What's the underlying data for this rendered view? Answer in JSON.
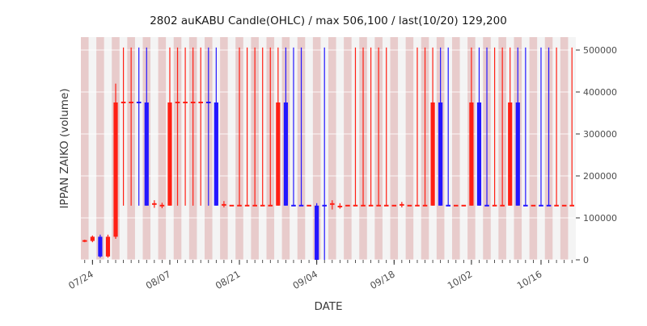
{
  "chart_data": {
    "type": "candlestick-ohlc",
    "title": "2802 auKABU Candle(OHLC) / max 506,100 / last(10/20) 129,200",
    "xlabel": "DATE",
    "ylabel": "IPPAN ZAIKO (volume)",
    "max_value": 506100,
    "last": {
      "date": "10/20",
      "value": 129200
    },
    "ylim": [
      0,
      530000
    ],
    "yticks": [
      0,
      100000,
      200000,
      300000,
      400000,
      500000
    ],
    "xticks": [
      "07/24",
      "08/07",
      "08/21",
      "09/04",
      "09/18",
      "10/02",
      "10/16"
    ],
    "legend": "none",
    "grid": "white-horizontal",
    "colors": {
      "red": "#ff1f14",
      "blue": "#2416ff",
      "plot_bg": "#e8e8e8",
      "stripe_pink": "rgba(235,130,130,0.28)",
      "stripe_light": "rgba(255,255,255,0.50)",
      "tick_label": "#4d4d4d",
      "title_text": "#1a1a1a"
    },
    "candle_fields": [
      "date",
      "open",
      "high",
      "low",
      "close",
      "color"
    ],
    "candles": [
      [
        "07/21",
        45000,
        48000,
        42000,
        45000,
        "red"
      ],
      [
        "07/24",
        45000,
        58000,
        42000,
        55000,
        "red"
      ],
      [
        "07/25",
        55000,
        60000,
        5000,
        8000,
        "blue"
      ],
      [
        "07/26",
        8000,
        60000,
        5000,
        55000,
        "red"
      ],
      [
        "07/27",
        55000,
        420000,
        50000,
        375000,
        "red"
      ],
      [
        "07/28",
        375000,
        506100,
        129200,
        375000,
        "red"
      ],
      [
        "07/31",
        375000,
        506100,
        129200,
        375000,
        "red"
      ],
      [
        "08/01",
        375000,
        506100,
        129200,
        375000,
        "blue"
      ],
      [
        "08/02",
        375000,
        506100,
        129200,
        129200,
        "blue"
      ],
      [
        "08/03",
        129200,
        142000,
        124000,
        133000,
        "red"
      ],
      [
        "08/04",
        129200,
        136000,
        123000,
        129200,
        "red"
      ],
      [
        "08/07",
        129200,
        506100,
        129200,
        375000,
        "red"
      ],
      [
        "08/08",
        375000,
        506100,
        129200,
        375000,
        "red"
      ],
      [
        "08/09",
        375000,
        506100,
        129200,
        375000,
        "red"
      ],
      [
        "08/10",
        375000,
        506100,
        129200,
        375000,
        "red"
      ],
      [
        "08/14",
        375000,
        506100,
        129200,
        375000,
        "red"
      ],
      [
        "08/15",
        375000,
        506100,
        129200,
        375000,
        "blue"
      ],
      [
        "08/16",
        375000,
        506100,
        129200,
        129200,
        "blue"
      ],
      [
        "08/17",
        129200,
        140000,
        125000,
        131000,
        "red"
      ],
      [
        "08/18",
        129200,
        129200,
        129200,
        129200,
        "red"
      ],
      [
        "08/21",
        129200,
        506100,
        129200,
        129200,
        "red"
      ],
      [
        "08/22",
        129200,
        506100,
        129200,
        129200,
        "red"
      ],
      [
        "08/23",
        129200,
        506100,
        129200,
        129200,
        "red"
      ],
      [
        "08/24",
        129200,
        506100,
        129200,
        129200,
        "red"
      ],
      [
        "08/25",
        129200,
        506100,
        129200,
        129200,
        "red"
      ],
      [
        "08/28",
        129200,
        506100,
        129200,
        375000,
        "red"
      ],
      [
        "08/29",
        375000,
        506100,
        129200,
        129200,
        "blue"
      ],
      [
        "08/30",
        129200,
        506100,
        129200,
        129200,
        "blue"
      ],
      [
        "08/31",
        129200,
        506100,
        129200,
        129200,
        "blue"
      ],
      [
        "09/01",
        129200,
        129200,
        129200,
        129200,
        "red"
      ],
      [
        "09/04",
        129200,
        135000,
        0,
        0,
        "blue"
      ],
      [
        "09/05",
        129200,
        506100,
        0,
        129200,
        "blue"
      ],
      [
        "09/06",
        129200,
        142000,
        120000,
        133000,
        "red"
      ],
      [
        "09/07",
        129200,
        135000,
        122000,
        127000,
        "red"
      ],
      [
        "09/08",
        129200,
        129200,
        129200,
        129200,
        "red"
      ],
      [
        "09/11",
        129200,
        506100,
        129200,
        129200,
        "red"
      ],
      [
        "09/12",
        129200,
        506100,
        129200,
        129200,
        "red"
      ],
      [
        "09/13",
        129200,
        506100,
        129200,
        129200,
        "red"
      ],
      [
        "09/14",
        129200,
        506100,
        129200,
        129200,
        "red"
      ],
      [
        "09/15",
        129200,
        506100,
        129200,
        129200,
        "red"
      ],
      [
        "09/18",
        129200,
        129200,
        129200,
        129200,
        "red"
      ],
      [
        "09/19",
        129200,
        138000,
        125000,
        131000,
        "red"
      ],
      [
        "09/20",
        129200,
        129200,
        129200,
        129200,
        "red"
      ],
      [
        "09/21",
        129200,
        506100,
        129200,
        129200,
        "red"
      ],
      [
        "09/22",
        129200,
        506100,
        129200,
        129200,
        "red"
      ],
      [
        "09/25",
        129200,
        506100,
        129200,
        375000,
        "red"
      ],
      [
        "09/26",
        375000,
        506100,
        129200,
        129200,
        "blue"
      ],
      [
        "09/27",
        129200,
        506100,
        129200,
        129200,
        "blue"
      ],
      [
        "09/28",
        129200,
        129200,
        129200,
        129200,
        "red"
      ],
      [
        "09/29",
        129200,
        129200,
        129200,
        129200,
        "red"
      ],
      [
        "10/02",
        129200,
        506100,
        129200,
        375000,
        "red"
      ],
      [
        "10/03",
        375000,
        506100,
        129200,
        129200,
        "blue"
      ],
      [
        "10/04",
        129200,
        506100,
        129200,
        129200,
        "blue"
      ],
      [
        "10/05",
        129200,
        506100,
        129200,
        129200,
        "red"
      ],
      [
        "10/06",
        129200,
        506100,
        129200,
        129200,
        "red"
      ],
      [
        "10/10",
        129200,
        506100,
        129200,
        375000,
        "red"
      ],
      [
        "10/11",
        375000,
        506100,
        129200,
        129200,
        "blue"
      ],
      [
        "10/12",
        129200,
        506100,
        129200,
        129200,
        "blue"
      ],
      [
        "10/13",
        129200,
        129200,
        129200,
        129200,
        "red"
      ],
      [
        "10/16",
        129200,
        506100,
        129200,
        129200,
        "blue"
      ],
      [
        "10/17",
        129200,
        506100,
        129200,
        129200,
        "blue"
      ],
      [
        "10/18",
        129200,
        506100,
        129200,
        129200,
        "red"
      ],
      [
        "10/19",
        129200,
        129200,
        129200,
        129200,
        "red"
      ],
      [
        "10/20",
        129200,
        506100,
        129200,
        129200,
        "red"
      ]
    ]
  }
}
